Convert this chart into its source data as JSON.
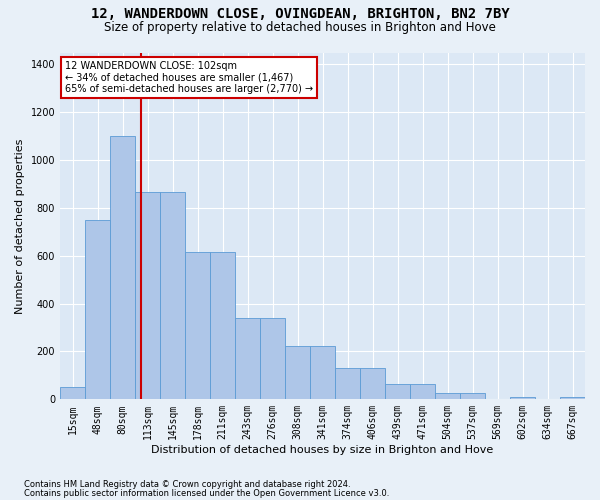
{
  "title": "12, WANDERDOWN CLOSE, OVINGDEAN, BRIGHTON, BN2 7BY",
  "subtitle": "Size of property relative to detached houses in Brighton and Hove",
  "xlabel": "Distribution of detached houses by size in Brighton and Hove",
  "ylabel": "Number of detached properties",
  "footer1": "Contains HM Land Registry data © Crown copyright and database right 2024.",
  "footer2": "Contains public sector information licensed under the Open Government Licence v3.0.",
  "categories": [
    "15sqm",
    "48sqm",
    "80sqm",
    "113sqm",
    "145sqm",
    "178sqm",
    "211sqm",
    "243sqm",
    "276sqm",
    "308sqm",
    "341sqm",
    "374sqm",
    "406sqm",
    "439sqm",
    "471sqm",
    "504sqm",
    "537sqm",
    "569sqm",
    "602sqm",
    "634sqm",
    "667sqm"
  ],
  "bar_values": [
    50,
    750,
    1100,
    865,
    865,
    615,
    615,
    340,
    340,
    225,
    225,
    130,
    130,
    65,
    65,
    25,
    25,
    0,
    10,
    0,
    10
  ],
  "bar_color": "#aec6e8",
  "bar_edge_color": "#5b9bd5",
  "vline_pos": 2.73,
  "vline_color": "#cc0000",
  "annotation_line1": "12 WANDERDOWN CLOSE: 102sqm",
  "annotation_line2": "← 34% of detached houses are smaller (1,467)",
  "annotation_line3": "65% of semi-detached houses are larger (2,770) →",
  "annotation_box_edgecolor": "#cc0000",
  "ylim": [
    0,
    1450
  ],
  "yticks": [
    0,
    200,
    400,
    600,
    800,
    1000,
    1200,
    1400
  ],
  "bg_color": "#e8f0f8",
  "plot_bg_color": "#dce8f5",
  "grid_color": "#ffffff",
  "title_fontsize": 10,
  "subtitle_fontsize": 8.5,
  "axis_label_fontsize": 8,
  "tick_fontsize": 7,
  "footer_fontsize": 6
}
